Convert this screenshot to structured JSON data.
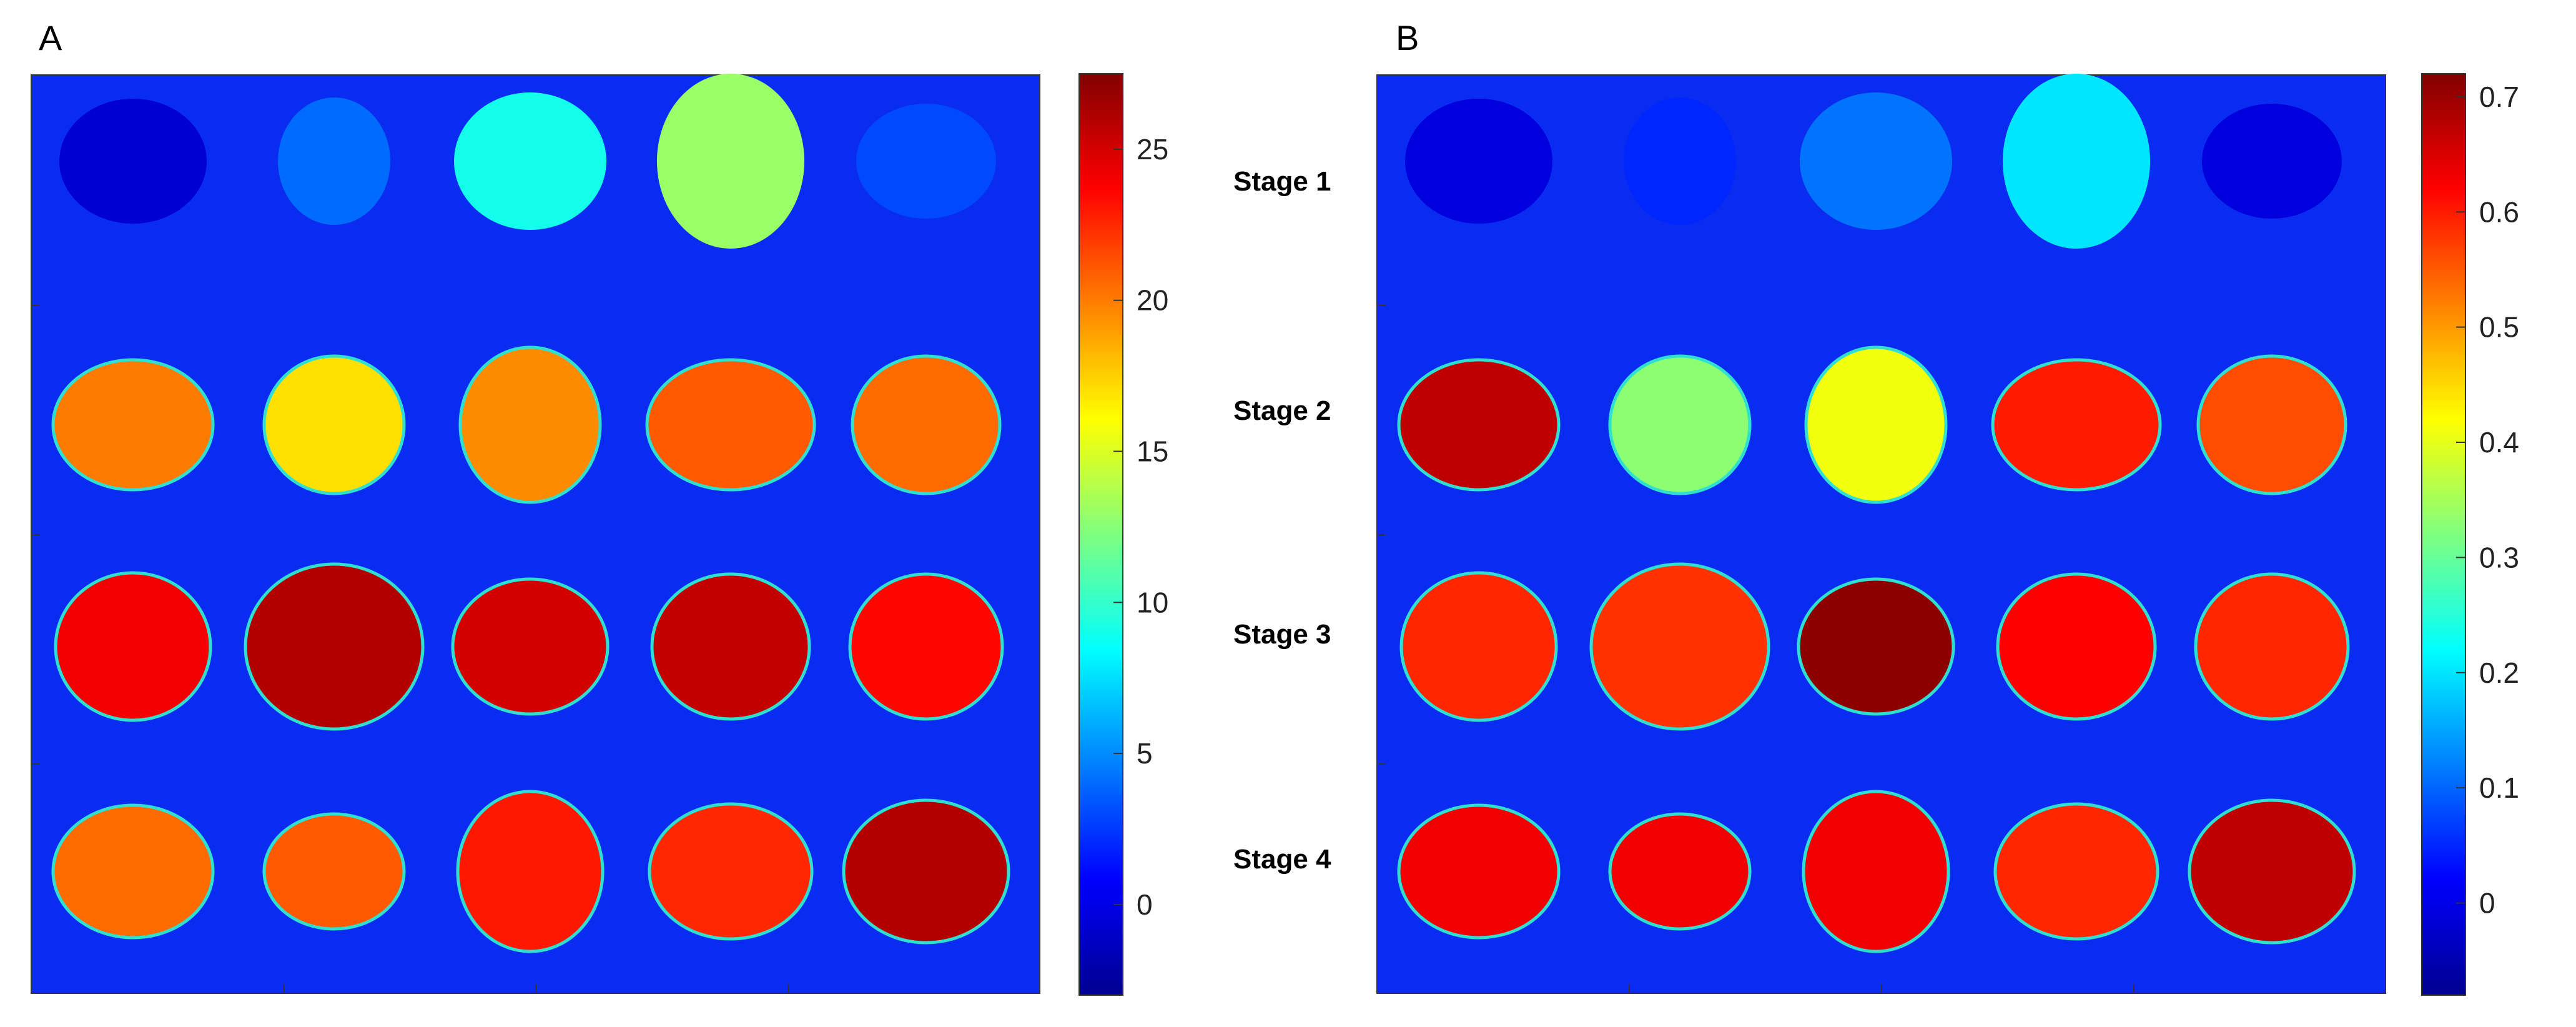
{
  "chart_data": [
    {
      "type": "heatmap",
      "panel_label": "A",
      "grid": {
        "rows": 4,
        "cols": 5
      },
      "colormap": "jet",
      "clim": [
        -3,
        27.5
      ],
      "colorbar_ticks": [
        0,
        5,
        10,
        15,
        20,
        25
      ],
      "colorbar_tick_labels": [
        "0",
        "5",
        "10",
        "15",
        "20",
        "25"
      ],
      "background_value": -0.5,
      "values": [
        [
          -0.5,
          4,
          9,
          13,
          3
        ],
        [
          20,
          17,
          19.5,
          21,
          20.5
        ],
        [
          24,
          26,
          25,
          25.5,
          23.5
        ],
        [
          20.5,
          21,
          23,
          22.5,
          26
        ]
      ]
    },
    {
      "type": "heatmap",
      "panel_label": "B",
      "grid": {
        "rows": 4,
        "cols": 5
      },
      "colormap": "jet",
      "clim": [
        -0.08,
        0.72
      ],
      "colorbar_ticks": [
        0,
        0.1,
        0.2,
        0.3,
        0.4,
        0.5,
        0.6,
        0.7
      ],
      "colorbar_tick_labels": [
        "0",
        "0.1",
        "0.2",
        "0.3",
        "0.4",
        "0.5",
        "0.6",
        "0.7"
      ],
      "background_value": -0.01,
      "values": [
        [
          -0.005,
          0.05,
          0.11,
          0.2,
          -0.005
        ],
        [
          0.67,
          0.33,
          0.41,
          0.6,
          0.56
        ],
        [
          0.59,
          0.58,
          0.71,
          0.62,
          0.59
        ],
        [
          0.63,
          0.63,
          0.63,
          0.59,
          0.67
        ]
      ]
    }
  ],
  "stage_labels": [
    "Stage 1",
    "Stage 2",
    "Stage 3",
    "Stage 4"
  ]
}
